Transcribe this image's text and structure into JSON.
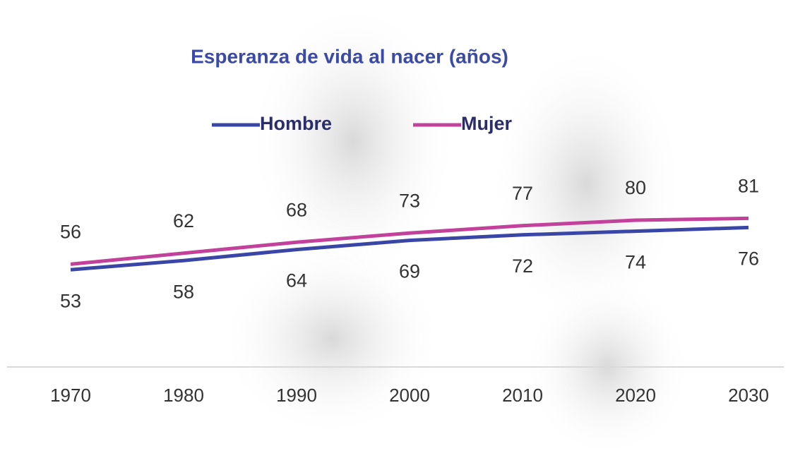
{
  "chart_data": {
    "type": "line",
    "title": "Esperanza de vida al nacer (años)",
    "categories": [
      "1970",
      "1980",
      "1990",
      "2000",
      "2010",
      "2020",
      "2030"
    ],
    "series": [
      {
        "name": "Hombre",
        "color": "#3a46a6",
        "values": [
          53,
          58,
          64,
          69,
          72,
          74,
          76
        ]
      },
      {
        "name": "Mujer",
        "color": "#c2419a",
        "values": [
          56,
          62,
          68,
          73,
          77,
          80,
          81
        ]
      }
    ],
    "ylim": [
      0,
      200
    ]
  }
}
